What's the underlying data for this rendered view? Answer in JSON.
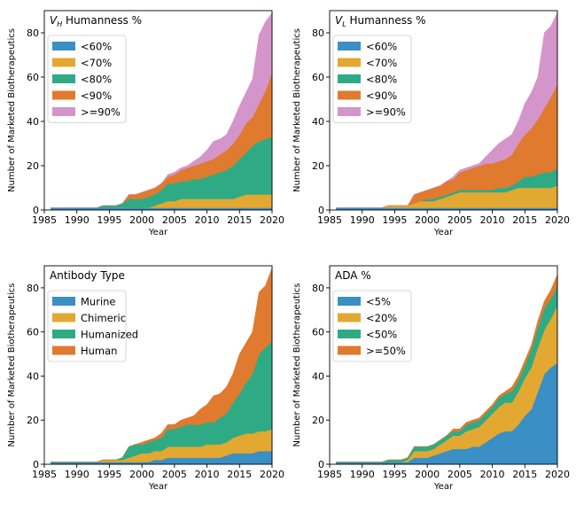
{
  "chart_data": [
    {
      "type": "area",
      "stacked": true,
      "title_main": "V",
      "title_sub": "H",
      "title_rest": " Humanness %",
      "xlabel": "Year",
      "ylabel": "Number of Marketed Biotherapeutics",
      "xlim": [
        1985,
        2020
      ],
      "ylim": [
        0,
        90
      ],
      "xticks": [
        1985,
        1990,
        1995,
        2000,
        2005,
        2010,
        2015,
        2020
      ],
      "yticks": [
        0,
        20,
        40,
        60,
        80
      ],
      "legend_position": "top-left",
      "years": [
        1986,
        1987,
        1988,
        1989,
        1990,
        1991,
        1992,
        1993,
        1994,
        1995,
        1996,
        1997,
        1998,
        1999,
        2000,
        2001,
        2002,
        2003,
        2004,
        2005,
        2006,
        2007,
        2008,
        2009,
        2010,
        2011,
        2012,
        2013,
        2014,
        2015,
        2016,
        2017,
        2018,
        2019,
        2020
      ],
      "series": [
        {
          "name": "<60%",
          "color": "#3a8fc4",
          "values": [
            1,
            1,
            1,
            1,
            1,
            1,
            1,
            1,
            1,
            1,
            1,
            1,
            1,
            1,
            1,
            1,
            1,
            1,
            1,
            1,
            1,
            1,
            1,
            1,
            1,
            1,
            1,
            1,
            1,
            1,
            1,
            1,
            1,
            1,
            1
          ]
        },
        {
          "name": "<70%",
          "color": "#e2a831",
          "values": [
            0,
            0,
            0,
            0,
            0,
            0,
            0,
            0,
            0,
            0,
            0,
            0,
            0,
            0,
            0,
            0,
            1,
            2,
            3,
            3,
            4,
            4,
            4,
            4,
            4,
            4,
            4,
            4,
            4,
            5,
            6,
            6,
            6,
            6,
            6
          ]
        },
        {
          "name": "<80%",
          "color": "#2eab85",
          "values": [
            0,
            0,
            0,
            0,
            0,
            0,
            0,
            0,
            1,
            1,
            1,
            2,
            4,
            4,
            4,
            5,
            5,
            6,
            8,
            8,
            8,
            8,
            9,
            9,
            10,
            11,
            12,
            13,
            15,
            17,
            19,
            22,
            24,
            25,
            26
          ]
        },
        {
          "name": "<90%",
          "color": "#e07a2e",
          "values": [
            0,
            0,
            0,
            0,
            0,
            0,
            0,
            0,
            0,
            0,
            0,
            0,
            2,
            2,
            3,
            3,
            3,
            3,
            3,
            4,
            5,
            6,
            6,
            7,
            7,
            7,
            8,
            9,
            10,
            11,
            13,
            13,
            17,
            22,
            29
          ]
        },
        {
          "name": ">=90%",
          "color": "#d495cb",
          "values": [
            0,
            0,
            0,
            0,
            0,
            0,
            0,
            0,
            0,
            0,
            0,
            0,
            0,
            0,
            0,
            0,
            0,
            0,
            1,
            1,
            1,
            1,
            2,
            3,
            5,
            8,
            7,
            7,
            10,
            13,
            14,
            17,
            31,
            31,
            27
          ]
        }
      ]
    },
    {
      "type": "area",
      "stacked": true,
      "title_main": "V",
      "title_sub": "L",
      "title_rest": " Humanness %",
      "xlabel": "Year",
      "ylabel": "Number of Marketed Biotherapeutics",
      "xlim": [
        1985,
        2020
      ],
      "ylim": [
        0,
        90
      ],
      "xticks": [
        1985,
        1990,
        1995,
        2000,
        2005,
        2010,
        2015,
        2020
      ],
      "yticks": [
        0,
        20,
        40,
        60,
        80
      ],
      "legend_position": "top-left",
      "years": [
        1986,
        1987,
        1988,
        1989,
        1990,
        1991,
        1992,
        1993,
        1994,
        1995,
        1996,
        1997,
        1998,
        1999,
        2000,
        2001,
        2002,
        2003,
        2004,
        2005,
        2006,
        2007,
        2008,
        2009,
        2010,
        2011,
        2012,
        2013,
        2014,
        2015,
        2016,
        2017,
        2018,
        2019,
        2020
      ],
      "series": [
        {
          "name": "<60%",
          "color": "#3a8fc4",
          "values": [
            1,
            1,
            1,
            1,
            1,
            1,
            1,
            1,
            1,
            1,
            1,
            1,
            1,
            1,
            1,
            1,
            1,
            1,
            1,
            1,
            1,
            1,
            1,
            1,
            1,
            1,
            1,
            1,
            1,
            1,
            1,
            1,
            1,
            1,
            1
          ]
        },
        {
          "name": "<70%",
          "color": "#e2a831",
          "values": [
            0,
            0,
            0,
            0,
            0,
            0,
            0,
            0,
            1,
            1,
            1,
            1,
            2,
            3,
            3,
            3,
            4,
            5,
            6,
            7,
            7,
            7,
            7,
            7,
            7,
            7,
            7,
            8,
            9,
            9,
            9,
            9,
            9,
            9,
            10
          ]
        },
        {
          "name": "<80%",
          "color": "#2eab85",
          "values": [
            0,
            0,
            0,
            0,
            0,
            0,
            0,
            0,
            0,
            0,
            0,
            0,
            0,
            0,
            1,
            1,
            1,
            1,
            1,
            1,
            1,
            1,
            1,
            1,
            1,
            2,
            2,
            2,
            3,
            5,
            5,
            6,
            7,
            7,
            8
          ]
        },
        {
          "name": "<90%",
          "color": "#e07a2e",
          "values": [
            0,
            0,
            0,
            0,
            0,
            0,
            0,
            0,
            0,
            0,
            0,
            0,
            4,
            4,
            4,
            5,
            5,
            6,
            6,
            8,
            9,
            10,
            11,
            12,
            12,
            12,
            13,
            14,
            17,
            19,
            22,
            25,
            29,
            34,
            38
          ]
        },
        {
          "name": ">=90%",
          "color": "#d495cb",
          "values": [
            0,
            0,
            0,
            0,
            0,
            0,
            0,
            0,
            0,
            0,
            0,
            0,
            0,
            0,
            0,
            0,
            0,
            0,
            1,
            1,
            1,
            1,
            1,
            3,
            6,
            8,
            9,
            9,
            10,
            14,
            16,
            19,
            34,
            32,
            32
          ]
        }
      ]
    },
    {
      "type": "area",
      "stacked": true,
      "title_main": "Antibody Type",
      "title_sub": "",
      "title_rest": "",
      "xlabel": "Year",
      "ylabel": "Number of Marketed Biotherapeutics",
      "xlim": [
        1985,
        2020
      ],
      "ylim": [
        0,
        90
      ],
      "xticks": [
        1985,
        1990,
        1995,
        2000,
        2005,
        2010,
        2015,
        2020
      ],
      "yticks": [
        0,
        20,
        40,
        60,
        80
      ],
      "legend_position": "top-left",
      "years": [
        1986,
        1987,
        1988,
        1989,
        1990,
        1991,
        1992,
        1993,
        1994,
        1995,
        1996,
        1997,
        1998,
        1999,
        2000,
        2001,
        2002,
        2003,
        2004,
        2005,
        2006,
        2007,
        2008,
        2009,
        2010,
        2011,
        2012,
        2013,
        2014,
        2015,
        2016,
        2017,
        2018,
        2019,
        2020
      ],
      "series": [
        {
          "name": "Murine",
          "color": "#3a8fc4",
          "values": [
            1,
            1,
            1,
            1,
            1,
            1,
            1,
            1,
            1,
            1,
            1,
            1,
            1,
            1,
            1,
            1,
            2,
            2,
            3,
            3,
            3,
            3,
            3,
            3,
            3,
            3,
            3,
            4,
            5,
            5,
            5,
            5,
            6,
            6,
            6
          ]
        },
        {
          "name": "Chimeric",
          "color": "#e2a831",
          "values": [
            0,
            0,
            0,
            0,
            0,
            0,
            0,
            0,
            1,
            1,
            1,
            1,
            2,
            3,
            4,
            4,
            4,
            4,
            5,
            5,
            5,
            5,
            5,
            5,
            6,
            6,
            6,
            6,
            7,
            8,
            9,
            9,
            9,
            9,
            10
          ]
        },
        {
          "name": "Humanized",
          "color": "#2eab85",
          "values": [
            0,
            0,
            0,
            0,
            0,
            0,
            0,
            0,
            0,
            0,
            0,
            1,
            5,
            5,
            4,
            5,
            5,
            6,
            8,
            8,
            9,
            10,
            10,
            10,
            10,
            10,
            12,
            13,
            16,
            19,
            23,
            27,
            35,
            38,
            40
          ]
        },
        {
          "name": "Human",
          "color": "#e07a2e",
          "values": [
            0,
            0,
            0,
            0,
            0,
            0,
            0,
            0,
            0,
            0,
            0,
            0,
            0,
            0,
            1,
            1,
            1,
            2,
            2,
            2,
            3,
            3,
            4,
            7,
            8,
            12,
            11,
            12,
            13,
            18,
            18,
            19,
            28,
            28,
            33
          ]
        }
      ]
    },
    {
      "type": "area",
      "stacked": true,
      "title_main": "ADA %",
      "title_sub": "",
      "title_rest": "",
      "xlabel": "Year",
      "ylabel": "Number of Marketed Biotherapeutics",
      "xlim": [
        1985,
        2020
      ],
      "ylim": [
        0,
        90
      ],
      "xticks": [
        1985,
        1990,
        1995,
        2000,
        2005,
        2010,
        2015,
        2020
      ],
      "yticks": [
        0,
        20,
        40,
        60,
        80
      ],
      "legend_position": "top-left",
      "years": [
        1986,
        1987,
        1988,
        1989,
        1990,
        1991,
        1992,
        1993,
        1994,
        1995,
        1996,
        1997,
        1998,
        1999,
        2000,
        2001,
        2002,
        2003,
        2004,
        2005,
        2006,
        2007,
        2008,
        2009,
        2010,
        2011,
        2012,
        2013,
        2014,
        2015,
        2016,
        2017,
        2018,
        2019,
        2020
      ],
      "series": [
        {
          "name": "<5%",
          "color": "#3a8fc4",
          "values": [
            1,
            1,
            1,
            1,
            1,
            1,
            1,
            1,
            1,
            1,
            1,
            1,
            3,
            3,
            3,
            4,
            5,
            6,
            7,
            7,
            7,
            8,
            8,
            10,
            12,
            14,
            15,
            15,
            18,
            22,
            25,
            33,
            41,
            44,
            46
          ]
        },
        {
          "name": "<20%",
          "color": "#e2a831",
          "values": [
            0,
            0,
            0,
            0,
            0,
            0,
            0,
            0,
            0,
            0,
            0,
            1,
            3,
            3,
            3,
            3,
            4,
            5,
            6,
            6,
            8,
            8,
            9,
            10,
            11,
            12,
            13,
            13,
            15,
            17,
            19,
            20,
            20,
            22,
            26
          ]
        },
        {
          "name": "<50%",
          "color": "#2eab85",
          "values": [
            0,
            0,
            0,
            0,
            0,
            0,
            0,
            0,
            1,
            1,
            1,
            1,
            2,
            2,
            2,
            2,
            2,
            2,
            2,
            2,
            3,
            3,
            3,
            3,
            3,
            4,
            4,
            5,
            5,
            6,
            8,
            9,
            10,
            9,
            9
          ]
        },
        {
          "name": ">=50%",
          "color": "#e07a2e",
          "values": [
            0,
            0,
            0,
            0,
            0,
            0,
            0,
            0,
            0,
            0,
            0,
            0,
            0,
            0,
            0,
            0,
            0,
            0,
            1,
            1,
            1,
            1,
            1,
            1,
            1,
            1,
            1,
            2,
            2,
            2,
            2,
            3,
            3,
            4,
            5
          ]
        }
      ]
    }
  ]
}
